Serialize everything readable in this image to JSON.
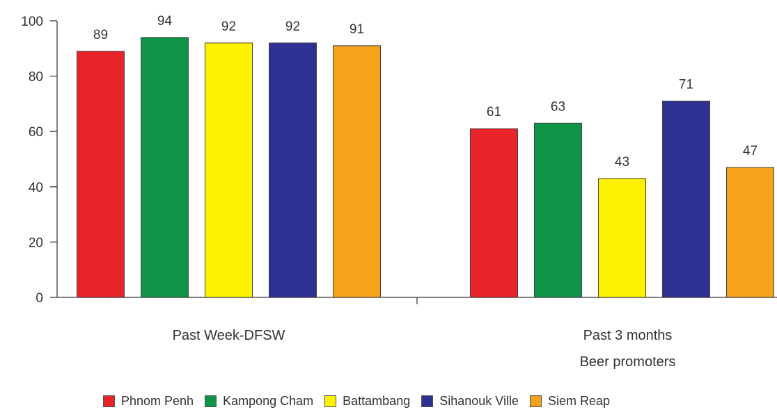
{
  "chart_data": {
    "type": "bar",
    "categories": [
      "Past Week-DFSW",
      "Past 3 months\nBeer promoters"
    ],
    "series": [
      {
        "name": "Phnom Penh",
        "values": [
          89,
          61
        ]
      },
      {
        "name": "Kampong Cham",
        "values": [
          94,
          63
        ]
      },
      {
        "name": "Battambang",
        "values": [
          92,
          43
        ]
      },
      {
        "name": "Sihanouk Ville",
        "values": [
          92,
          71
        ]
      },
      {
        "name": "Siem Reap",
        "values": [
          91,
          47
        ]
      }
    ],
    "title": "",
    "xlabel": "",
    "ylabel": "",
    "ylim": [
      0,
      100
    ],
    "yticks": [
      0,
      20,
      40,
      60,
      80,
      100
    ],
    "grid": false,
    "legend_position": "bottom",
    "colors": [
      "#e8232a",
      "#0d9447",
      "#fff200",
      "#2e3192",
      "#f7a21b"
    ]
  }
}
